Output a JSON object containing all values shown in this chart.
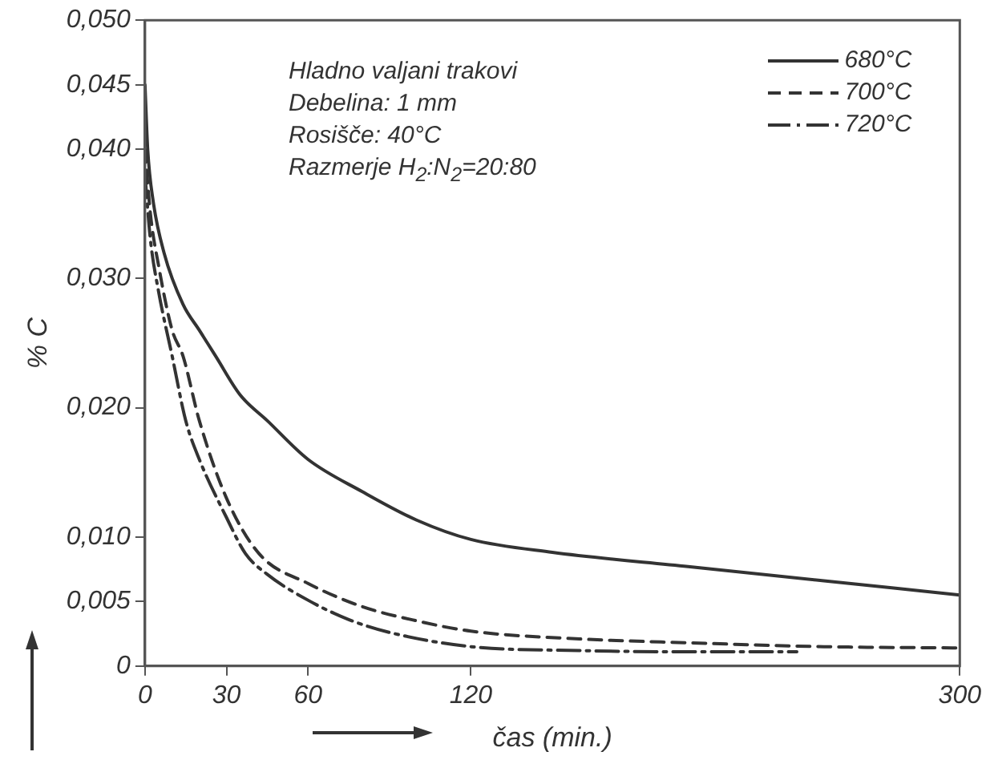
{
  "chart_data": {
    "type": "line",
    "xlabel": "čas (min.)",
    "ylabel": "% C",
    "annotations": [
      "Hladno valjani trakovi",
      "Debelina: 1 mm",
      "Rosišče: 40°C",
      "Razmerje H$_{2}$:N$_{2}$=20:80"
    ],
    "xlim": [
      0,
      300
    ],
    "xticks": [
      0,
      30,
      60,
      120,
      300
    ],
    "ylim": [
      0,
      0.05
    ],
    "yticks": [
      {
        "value": 0,
        "label": "0"
      },
      {
        "value": 0.005,
        "label": "0,005"
      },
      {
        "value": 0.01,
        "label": "0,010"
      },
      {
        "value": 0.02,
        "label": "0,020"
      },
      {
        "value": 0.03,
        "label": "0,030"
      },
      {
        "value": 0.04,
        "label": "0,040"
      },
      {
        "value": 0.045,
        "label": "0,045"
      },
      {
        "value": 0.05,
        "label": "0,050"
      }
    ],
    "grid": false,
    "legend": "top right",
    "marker": "none",
    "series": [
      {
        "name": "680°C",
        "color": "#333333",
        "line_style": "solid",
        "x": [
          0,
          1,
          3,
          7,
          14,
          20,
          26,
          35,
          45,
          60,
          80,
          100,
          120,
          150,
          200,
          250,
          300
        ],
        "values": [
          0.045,
          0.04,
          0.036,
          0.032,
          0.028,
          0.026,
          0.024,
          0.021,
          0.019,
          0.016,
          0.0135,
          0.0113,
          0.0098,
          0.0088,
          0.0077,
          0.0066,
          0.0055
        ]
      },
      {
        "name": "700°C",
        "color": "#333333",
        "line_style": "dashed",
        "x": [
          0,
          2,
          5,
          10,
          14,
          20,
          30,
          42,
          60,
          80,
          100,
          120,
          160,
          200,
          250,
          300
        ],
        "values": [
          0.04,
          0.035,
          0.031,
          0.026,
          0.024,
          0.019,
          0.013,
          0.0087,
          0.0064,
          0.0046,
          0.0035,
          0.0027,
          0.0021,
          0.0018,
          0.0015,
          0.0014
        ]
      },
      {
        "name": "720°C",
        "color": "#333333",
        "line_style": "dashdot",
        "x": [
          0,
          2,
          5,
          10,
          15,
          20,
          30,
          37,
          45,
          60,
          75,
          90,
          120,
          160,
          200,
          240
        ],
        "values": [
          0.038,
          0.033,
          0.029,
          0.024,
          0.019,
          0.016,
          0.0115,
          0.0087,
          0.0071,
          0.0051,
          0.0036,
          0.0026,
          0.0015,
          0.0012,
          0.0011,
          0.0011
        ]
      }
    ]
  }
}
